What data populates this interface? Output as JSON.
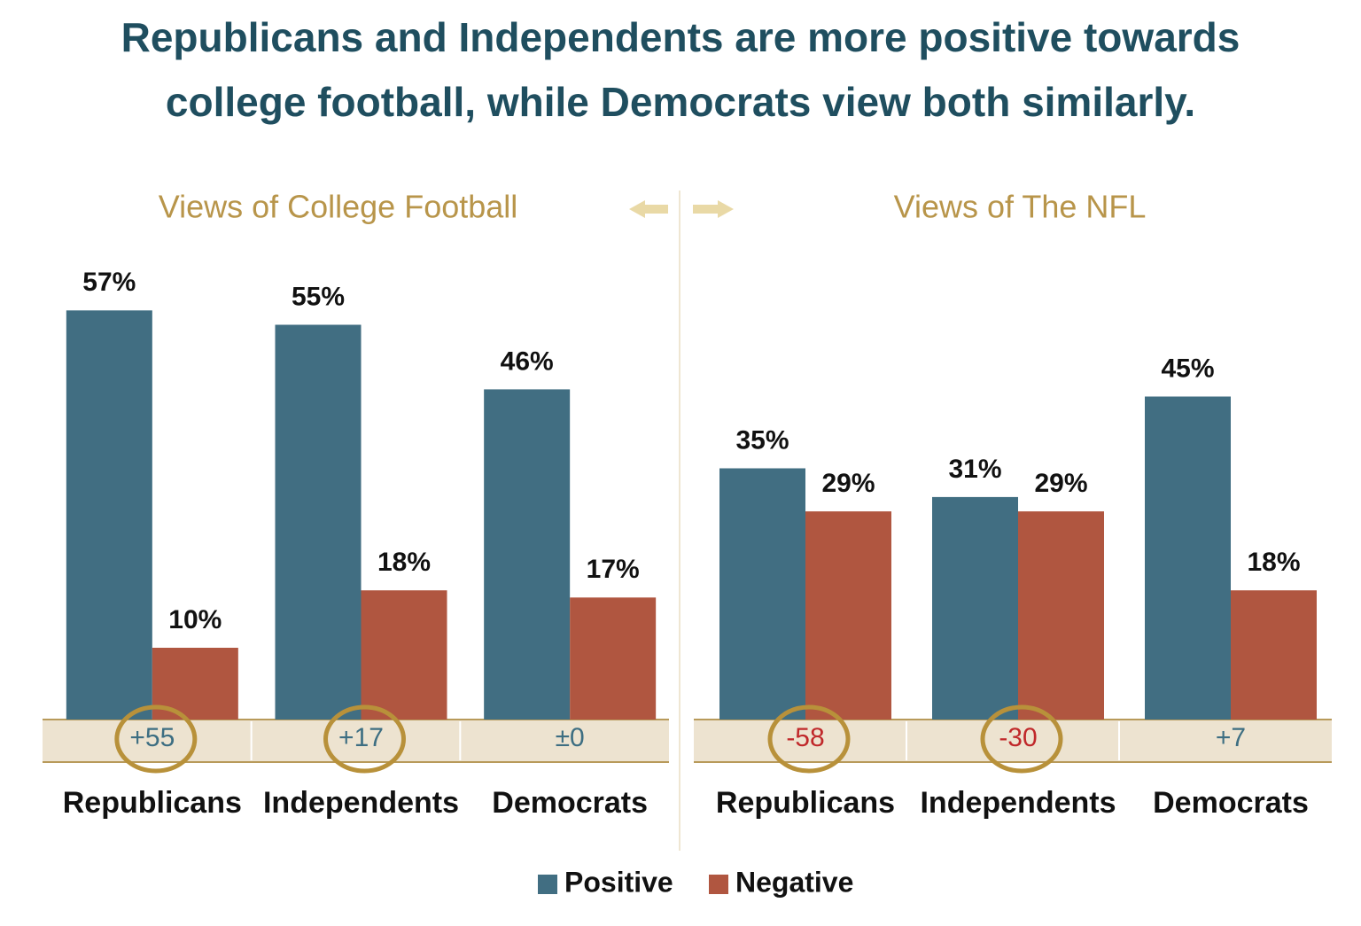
{
  "title": [
    "Republicans and Independents are more positive towards",
    "college football, while Democrats view both similarly."
  ],
  "chart_data": [
    {
      "type": "bar",
      "title": "Views of College Football",
      "categories": [
        "Republicans",
        "Independents",
        "Democrats"
      ],
      "series": [
        {
          "name": "Positive",
          "color": "#416e82",
          "values": [
            57,
            55,
            46
          ],
          "value_labels": [
            "57%",
            "55%",
            "46%"
          ]
        },
        {
          "name": "Negative",
          "color": "#b05640",
          "values": [
            10,
            18,
            17
          ],
          "value_labels": [
            "10%",
            "18%",
            "17%"
          ]
        }
      ],
      "net": {
        "values": [
          55,
          17,
          0
        ],
        "value_labels": [
          "+55",
          "+17",
          "±0"
        ],
        "circled": [
          true,
          true,
          false
        ]
      },
      "ylim": [
        0,
        60
      ]
    },
    {
      "type": "bar",
      "title": "Views of The NFL",
      "categories": [
        "Republicans",
        "Independents",
        "Democrats"
      ],
      "series": [
        {
          "color": "#416e82",
          "values": [
            35,
            31,
            45
          ],
          "value_labels": [
            "35%",
            "31%",
            "45%"
          ]
        },
        {
          "color": "#b05640",
          "values": [
            29,
            29,
            18
          ],
          "value_labels": [
            "29%",
            "29%",
            "18%"
          ]
        }
      ],
      "net": {
        "values": [
          -58,
          -30,
          7
        ],
        "value_labels": [
          "-58",
          "-30",
          "+7"
        ],
        "circled": [
          true,
          true,
          false
        ]
      },
      "ylim": [
        0,
        60
      ]
    }
  ]
}
